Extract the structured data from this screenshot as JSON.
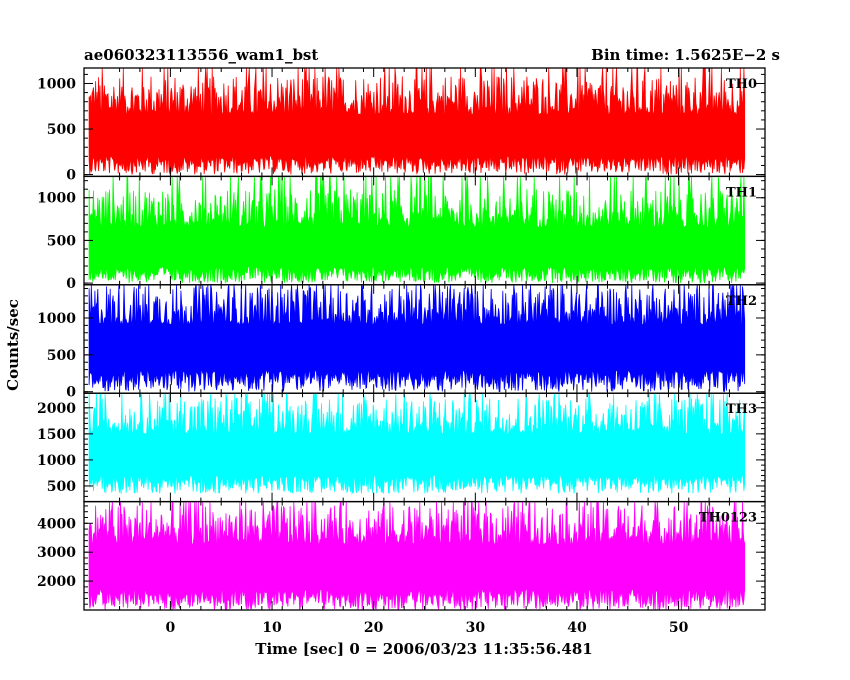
{
  "header": {
    "left_title": "ae060323113556_wam1_bst",
    "right_title": "Bin time: 1.5625E−2 s"
  },
  "chart_data": {
    "type": "line",
    "xlabel": "Time [sec] 0 = 2006/03/23 11:35:56.481",
    "ylabel": "Counts/sec",
    "xlim": [
      -8.5,
      58.5
    ],
    "x_ticks": [
      0,
      10,
      20,
      30,
      40,
      50
    ],
    "x_tick_labels": [
      "0",
      "10",
      "20",
      "30",
      "40",
      "50"
    ],
    "data_x_range": [
      -8,
      56.5
    ],
    "bin_time_s": 0.015625,
    "panels": [
      {
        "label": "TH0",
        "color": "#ff0000",
        "ylim": [
          -20,
          1170
        ],
        "y_ticks": [
          0,
          500,
          1000
        ],
        "y_tick_labels": [
          "0",
          "500",
          "1000"
        ],
        "mean": 450,
        "min": 0,
        "max": 1170
      },
      {
        "label": "TH1",
        "color": "#00ff00",
        "ylim": [
          -20,
          1250
        ],
        "y_ticks": [
          0,
          500,
          1000
        ],
        "y_tick_labels": [
          "0",
          "500",
          "1000"
        ],
        "mean": 430,
        "min": 0,
        "max": 1250
      },
      {
        "label": "TH2",
        "color": "#0000ff",
        "ylim": [
          -20,
          1450
        ],
        "y_ticks": [
          0,
          500,
          1000
        ],
        "y_tick_labels": [
          "0",
          "500",
          "1000"
        ],
        "mean": 650,
        "min": 0,
        "max": 1450
      },
      {
        "label": "TH3",
        "color": "#00ffff",
        "ylim": [
          200,
          2280
        ],
        "y_ticks": [
          500,
          1000,
          1500,
          2000
        ],
        "y_tick_labels": [
          "500",
          "1000",
          "1500",
          "2000"
        ],
        "mean": 1150,
        "min": 350,
        "max": 2280
      },
      {
        "label": "TH0123",
        "color": "#ff00ff",
        "ylim": [
          1000,
          4750
        ],
        "y_ticks": [
          2000,
          3000,
          4000
        ],
        "y_tick_labels": [
          "2000",
          "3000",
          "4000"
        ],
        "mean": 2600,
        "min": 1000,
        "max": 4750
      }
    ]
  }
}
